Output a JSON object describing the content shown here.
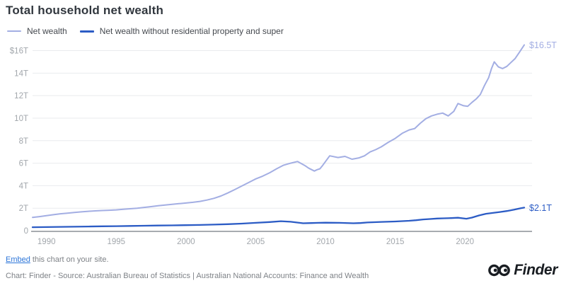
{
  "title": "Total household net wealth",
  "legend": [
    {
      "label": "Net wealth",
      "color": "#a3aee3"
    },
    {
      "label": "Net wealth without residential property and super",
      "color": "#2c5cc5"
    }
  ],
  "colors": {
    "grid": "#e9ebee",
    "axis_baseline": "#a8abb0",
    "axis_labels": "#a2a7ac",
    "title_text": "#31373e",
    "footer_text": "#7e8287",
    "embed_link": "#2d76d9",
    "logo": "#191d22"
  },
  "chart_data": {
    "type": "line",
    "title": "Total household net wealth",
    "grid": true,
    "legend_position": "top-left",
    "unit": "trillions of dollars",
    "x_axis": {
      "range": [
        1989,
        2024.25
      ],
      "ticks": [
        "1990",
        "1995",
        "2000",
        "2005",
        "2010",
        "2015",
        "2020"
      ],
      "tick_values": [
        1990,
        1995,
        2000,
        2005,
        2010,
        2015,
        2020
      ]
    },
    "y_axis": {
      "range": [
        0,
        16.5
      ],
      "ticks": [
        "$16T",
        "14T",
        "12T",
        "10T",
        "8T",
        "6T",
        "4T",
        "2T",
        "0"
      ],
      "tick_values": [
        16,
        14,
        12,
        10,
        8,
        6,
        4,
        2,
        0
      ]
    },
    "series": [
      {
        "name": "Net wealth",
        "color": "#a3aee3",
        "end_label": "$16.5T",
        "points": [
          [
            1989,
            1.18
          ],
          [
            1989.5,
            1.25
          ],
          [
            1990,
            1.33
          ],
          [
            1990.5,
            1.42
          ],
          [
            1991,
            1.5
          ],
          [
            1991.5,
            1.56
          ],
          [
            1992,
            1.62
          ],
          [
            1992.5,
            1.67
          ],
          [
            1993,
            1.72
          ],
          [
            1993.5,
            1.76
          ],
          [
            1994,
            1.79
          ],
          [
            1994.5,
            1.82
          ],
          [
            1995,
            1.85
          ],
          [
            1995.5,
            1.9
          ],
          [
            1996,
            1.95
          ],
          [
            1996.5,
            2.0
          ],
          [
            1997,
            2.07
          ],
          [
            1997.5,
            2.14
          ],
          [
            1998,
            2.22
          ],
          [
            1998.5,
            2.28
          ],
          [
            1999,
            2.34
          ],
          [
            1999.5,
            2.4
          ],
          [
            2000,
            2.46
          ],
          [
            2000.5,
            2.52
          ],
          [
            2001,
            2.6
          ],
          [
            2001.5,
            2.72
          ],
          [
            2002,
            2.87
          ],
          [
            2002.5,
            3.08
          ],
          [
            2003,
            3.35
          ],
          [
            2003.5,
            3.65
          ],
          [
            2004,
            3.97
          ],
          [
            2004.5,
            4.28
          ],
          [
            2005,
            4.6
          ],
          [
            2005.5,
            4.85
          ],
          [
            2006,
            5.15
          ],
          [
            2006.5,
            5.5
          ],
          [
            2007,
            5.82
          ],
          [
            2007.5,
            6.0
          ],
          [
            2008,
            6.15
          ],
          [
            2008.5,
            5.8
          ],
          [
            2008.8,
            5.55
          ],
          [
            2009.2,
            5.3
          ],
          [
            2009.4,
            5.42
          ],
          [
            2009.6,
            5.5
          ],
          [
            2009.8,
            5.8
          ],
          [
            2010.3,
            6.65
          ],
          [
            2010.9,
            6.5
          ],
          [
            2011.4,
            6.6
          ],
          [
            2011.9,
            6.35
          ],
          [
            2012.4,
            6.47
          ],
          [
            2012.8,
            6.65
          ],
          [
            2013.2,
            7.0
          ],
          [
            2013.6,
            7.2
          ],
          [
            2014,
            7.45
          ],
          [
            2014.5,
            7.85
          ],
          [
            2015,
            8.2
          ],
          [
            2015.5,
            8.65
          ],
          [
            2016,
            8.95
          ],
          [
            2016.4,
            9.08
          ],
          [
            2016.8,
            9.55
          ],
          [
            2017.2,
            9.95
          ],
          [
            2017.6,
            10.2
          ],
          [
            2018,
            10.35
          ],
          [
            2018.4,
            10.45
          ],
          [
            2018.8,
            10.2
          ],
          [
            2019.2,
            10.6
          ],
          [
            2019.5,
            11.3
          ],
          [
            2019.9,
            11.1
          ],
          [
            2020.2,
            11.05
          ],
          [
            2020.5,
            11.4
          ],
          [
            2020.8,
            11.7
          ],
          [
            2021.1,
            12.1
          ],
          [
            2021.4,
            12.9
          ],
          [
            2021.7,
            13.6
          ],
          [
            2021.9,
            14.4
          ],
          [
            2022.1,
            15.0
          ],
          [
            2022.4,
            14.55
          ],
          [
            2022.7,
            14.4
          ],
          [
            2023,
            14.6
          ],
          [
            2023.3,
            14.95
          ],
          [
            2023.6,
            15.3
          ],
          [
            2023.9,
            15.85
          ],
          [
            2024.25,
            16.5
          ]
        ]
      },
      {
        "name": "Net wealth without residential property and super",
        "color": "#2c5cc5",
        "end_label": "$2.1T",
        "points": [
          [
            1989,
            0.31
          ],
          [
            1990,
            0.32
          ],
          [
            1991,
            0.34
          ],
          [
            1992,
            0.35
          ],
          [
            1993,
            0.37
          ],
          [
            1994,
            0.39
          ],
          [
            1995,
            0.4
          ],
          [
            1996,
            0.42
          ],
          [
            1997,
            0.44
          ],
          [
            1998,
            0.46
          ],
          [
            1999,
            0.47
          ],
          [
            2000,
            0.49
          ],
          [
            2001,
            0.51
          ],
          [
            2002,
            0.54
          ],
          [
            2003,
            0.58
          ],
          [
            2004,
            0.63
          ],
          [
            2005,
            0.7
          ],
          [
            2006,
            0.77
          ],
          [
            2006.8,
            0.84
          ],
          [
            2007.5,
            0.79
          ],
          [
            2008.4,
            0.66
          ],
          [
            2009,
            0.68
          ],
          [
            2009.5,
            0.7
          ],
          [
            2010,
            0.71
          ],
          [
            2011,
            0.7
          ],
          [
            2012,
            0.66
          ],
          [
            2012.5,
            0.68
          ],
          [
            2013,
            0.73
          ],
          [
            2014,
            0.78
          ],
          [
            2015,
            0.82
          ],
          [
            2016,
            0.88
          ],
          [
            2016.5,
            0.93
          ],
          [
            2017,
            1.0
          ],
          [
            2017.5,
            1.04
          ],
          [
            2018,
            1.08
          ],
          [
            2018.5,
            1.1
          ],
          [
            2019,
            1.12
          ],
          [
            2019.5,
            1.15
          ],
          [
            2020.1,
            1.06
          ],
          [
            2020.5,
            1.16
          ],
          [
            2021,
            1.35
          ],
          [
            2021.5,
            1.5
          ],
          [
            2022,
            1.58
          ],
          [
            2022.5,
            1.66
          ],
          [
            2023,
            1.75
          ],
          [
            2023.5,
            1.86
          ],
          [
            2024,
            2.0
          ],
          [
            2024.25,
            2.05
          ]
        ]
      }
    ]
  },
  "footer": {
    "embed_link_label": "Embed",
    "embed_text": " this chart on your site.",
    "attribution": "Chart: Finder - Source: Australian Bureau of Statistics | Australian National Accounts: Finance and Wealth",
    "logo_text": "Finder"
  }
}
